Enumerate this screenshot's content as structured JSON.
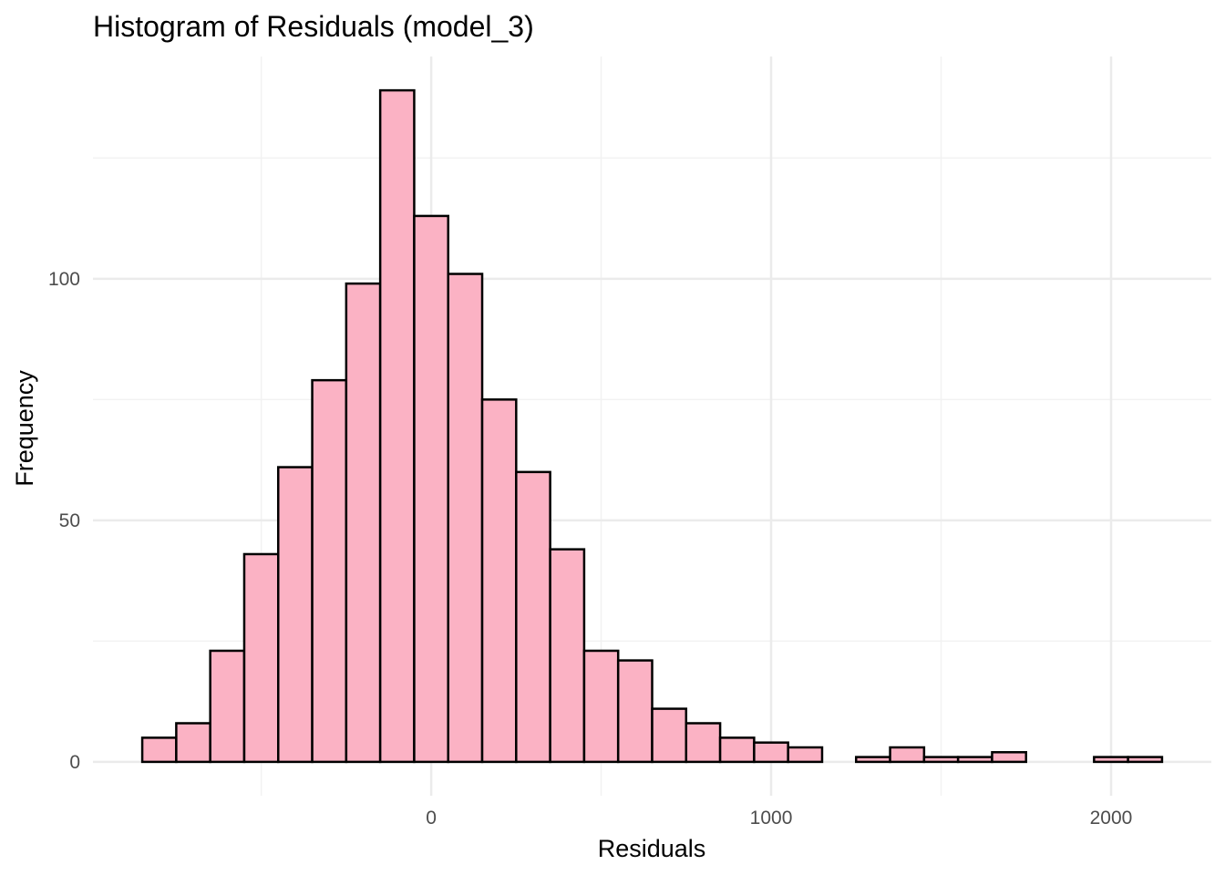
{
  "chart_data": {
    "type": "bar",
    "title": "Histogram of Residuals (model_3)",
    "xlabel": "Residuals",
    "ylabel": "Frequency",
    "bin_width": 100,
    "bins": [
      {
        "x_start": -850,
        "x_end": -750,
        "count": 5
      },
      {
        "x_start": -750,
        "x_end": -650,
        "count": 8
      },
      {
        "x_start": -650,
        "x_end": -550,
        "count": 23
      },
      {
        "x_start": -550,
        "x_end": -450,
        "count": 43
      },
      {
        "x_start": -450,
        "x_end": -350,
        "count": 61
      },
      {
        "x_start": -350,
        "x_end": -250,
        "count": 79
      },
      {
        "x_start": -250,
        "x_end": -150,
        "count": 99
      },
      {
        "x_start": -150,
        "x_end": -50,
        "count": 139
      },
      {
        "x_start": -50,
        "x_end": 50,
        "count": 113
      },
      {
        "x_start": 50,
        "x_end": 150,
        "count": 101
      },
      {
        "x_start": 150,
        "x_end": 250,
        "count": 75
      },
      {
        "x_start": 250,
        "x_end": 350,
        "count": 60
      },
      {
        "x_start": 350,
        "x_end": 450,
        "count": 44
      },
      {
        "x_start": 450,
        "x_end": 550,
        "count": 23
      },
      {
        "x_start": 550,
        "x_end": 650,
        "count": 21
      },
      {
        "x_start": 650,
        "x_end": 750,
        "count": 11
      },
      {
        "x_start": 750,
        "x_end": 850,
        "count": 8
      },
      {
        "x_start": 850,
        "x_end": 950,
        "count": 5
      },
      {
        "x_start": 950,
        "x_end": 1050,
        "count": 4
      },
      {
        "x_start": 1050,
        "x_end": 1150,
        "count": 3
      },
      {
        "x_start": 1150,
        "x_end": 1250,
        "count": 0
      },
      {
        "x_start": 1250,
        "x_end": 1350,
        "count": 1
      },
      {
        "x_start": 1350,
        "x_end": 1450,
        "count": 3
      },
      {
        "x_start": 1450,
        "x_end": 1550,
        "count": 1
      },
      {
        "x_start": 1550,
        "x_end": 1650,
        "count": 1
      },
      {
        "x_start": 1650,
        "x_end": 1750,
        "count": 2
      },
      {
        "x_start": 1750,
        "x_end": 1850,
        "count": 0
      },
      {
        "x_start": 1850,
        "x_end": 1950,
        "count": 0
      },
      {
        "x_start": 1950,
        "x_end": 2050,
        "count": 1
      },
      {
        "x_start": 2050,
        "x_end": 2150,
        "count": 1
      }
    ],
    "xlim": [
      -995,
      2295
    ],
    "ylim": [
      -7,
      146
    ],
    "x_ticks": [
      0,
      1000,
      2000
    ],
    "x_tick_labels": [
      "0",
      "1000",
      "2000"
    ],
    "x_minor_gridlines": [
      -500,
      500,
      1500
    ],
    "y_ticks": [
      0,
      50,
      100
    ],
    "y_tick_labels": [
      "0",
      "50",
      "100"
    ],
    "y_minor_gridlines": [
      25,
      75,
      125
    ],
    "grid": true,
    "legend": "none",
    "colors": {
      "bar_fill": "#FBB2C4",
      "bar_outline": "#000000",
      "grid_major": "#EBEBEB",
      "grid_minor": "#F2F2F2",
      "tick_text": "#4D4D4D",
      "text": "#000000"
    }
  }
}
